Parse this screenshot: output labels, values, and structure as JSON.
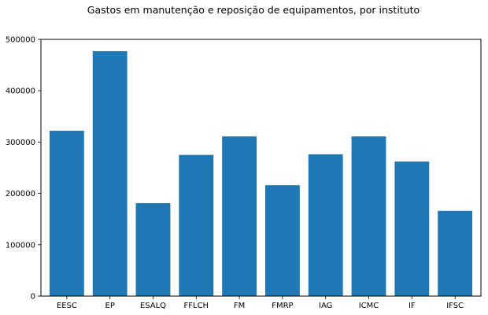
{
  "chart_data": {
    "type": "bar",
    "title": "Gastos em manutenção e reposição de equipamentos, por instituto",
    "xlabel": "",
    "ylabel": "",
    "categories": [
      "EESC",
      "EP",
      "ESALQ",
      "FFLCH",
      "FM",
      "FMRP",
      "IAG",
      "ICMC",
      "IF",
      "IFSC"
    ],
    "values": [
      322000,
      477000,
      181000,
      275000,
      311000,
      216000,
      276000,
      311000,
      262000,
      166000
    ],
    "ylim": [
      0,
      500000
    ],
    "yticks": [
      "0",
      "100000",
      "200000",
      "300000",
      "400000",
      "500000"
    ],
    "bar_color": "#1f77b4",
    "grid": false,
    "legend": "none"
  }
}
